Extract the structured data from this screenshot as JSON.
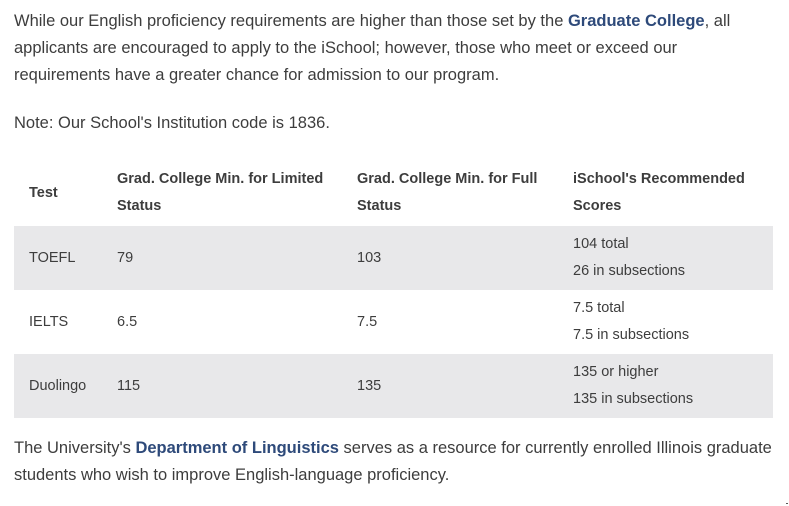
{
  "intro": {
    "text_before": "While our English proficiency requirements are higher than those set by the ",
    "link_label": "Graduate College",
    "text_after": ", all applicants are encouraged to apply to the iSchool; however, those who meet or exceed our requirements have a greater chance for admission to our program."
  },
  "note": "Note: Our School's Institution code is 1836.",
  "table": {
    "headers": [
      "Test",
      "Grad. College Min. for Limited Status",
      "Grad. College Min. for Full Status",
      "iSchool's Recommended Scores"
    ],
    "rows": [
      {
        "test": "TOEFL",
        "limited": "79",
        "full": "103",
        "recommended_1": "104 total",
        "recommended_2": "26 in subsections"
      },
      {
        "test": "IELTS",
        "limited": "6.5",
        "full": "7.5",
        "recommended_1": "7.5 total",
        "recommended_2": "7.5 in subsections"
      },
      {
        "test": "Duolingo",
        "limited": "115",
        "full": "135",
        "recommended_1": "135 or higher",
        "recommended_2": "135 in subsections"
      }
    ]
  },
  "outro": {
    "text_before": "The University's ",
    "link_label": "Department of Linguistics",
    "text_after": " serves as a resource for currently enrolled Illinois graduate students who wish to improve English-language proficiency."
  },
  "colors": {
    "link": "#2e4a7a",
    "row_shade": "#e8e8ea",
    "text": "#3d3d3d"
  }
}
